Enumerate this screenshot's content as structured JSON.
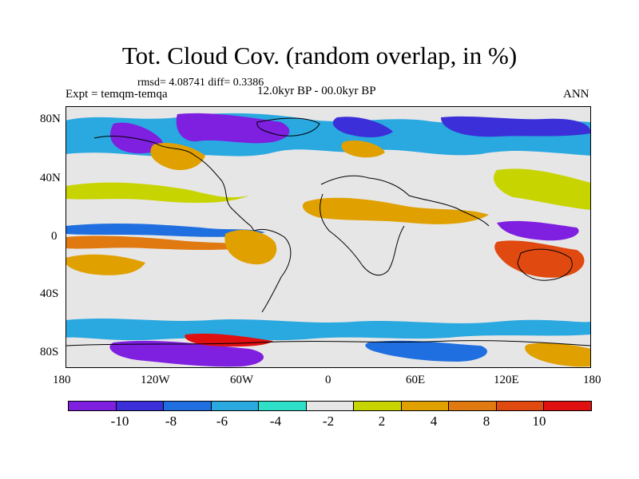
{
  "map": {
    "title": "Tot. Cloud Cov. (random overlap, in %)",
    "stats": "rmsd= 4.08741 diff= 0.3386",
    "experiment": "Expt = temqm-temqa",
    "period": "12.0kyr BP - 00.0kyr BP",
    "season": "ANN",
    "lat_labels": [
      "80N",
      "40N",
      "0",
      "40S",
      "80S"
    ],
    "lon_labels": [
      "180",
      "120W",
      "60W",
      "0",
      "60E",
      "120E",
      "180"
    ]
  },
  "colorbar": {
    "colors": [
      "#7f1fe0",
      "#3a2fd8",
      "#1f6fe0",
      "#2aa8e0",
      "#2ee0c8",
      "#e6e6e6",
      "#c8d400",
      "#e0a000",
      "#e07a10",
      "#e04a10",
      "#e01010"
    ],
    "labels": [
      "-10",
      "-8",
      "-6",
      "-4",
      "-2",
      "2",
      "4",
      "8",
      "10"
    ]
  }
}
